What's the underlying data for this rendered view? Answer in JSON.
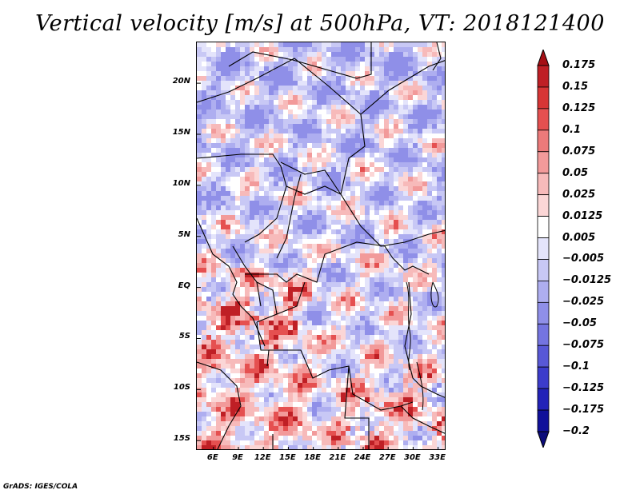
{
  "title": "Vertical velocity [m/s] at 500hPa, VT: 2018121400",
  "credit": "GrADS: IGES/COLA",
  "map": {
    "lon_range": [
      4,
      34
    ],
    "lat_range": [
      -16,
      24
    ],
    "lat_labels": [
      "20N",
      "15N",
      "10N",
      "5N",
      "EQ",
      "5S",
      "10S",
      "15S"
    ],
    "lat_values": [
      20,
      15,
      10,
      5,
      0,
      -5,
      -10,
      -15
    ],
    "lon_labels": [
      "6E",
      "9E",
      "12E",
      "15E",
      "18E",
      "21E",
      "24E",
      "27E",
      "30E",
      "33E"
    ],
    "lon_values": [
      6,
      9,
      12,
      15,
      18,
      21,
      24,
      27,
      30,
      33
    ],
    "field_pattern": "mixed positive and negative vertical velocity; strongest positive (red) values near the equatorial coast and southeast; negative (blue) dominant in the north"
  },
  "colorbar": {
    "labels": [
      "0.175",
      "0.15",
      "0.125",
      "0.1",
      "0.075",
      "0.05",
      "0.025",
      "0.0125",
      "0.005",
      "−0.005",
      "−0.0125",
      "−0.025",
      "−0.05",
      "−0.075",
      "−0.1",
      "−0.125",
      "−0.175",
      "−0.2"
    ],
    "colors": [
      "#a50f15",
      "#bf1f25",
      "#d73535",
      "#e55050",
      "#ec7a7a",
      "#f29a9a",
      "#f7baba",
      "#fbd6d6",
      "#ffffff",
      "#e4e4fb",
      "#c8c8f5",
      "#aeaef0",
      "#8f8fe8",
      "#7474e0",
      "#5858d6",
      "#3c3ccb",
      "#2222b8",
      "#10109a",
      "#0b0b7a"
    ]
  }
}
